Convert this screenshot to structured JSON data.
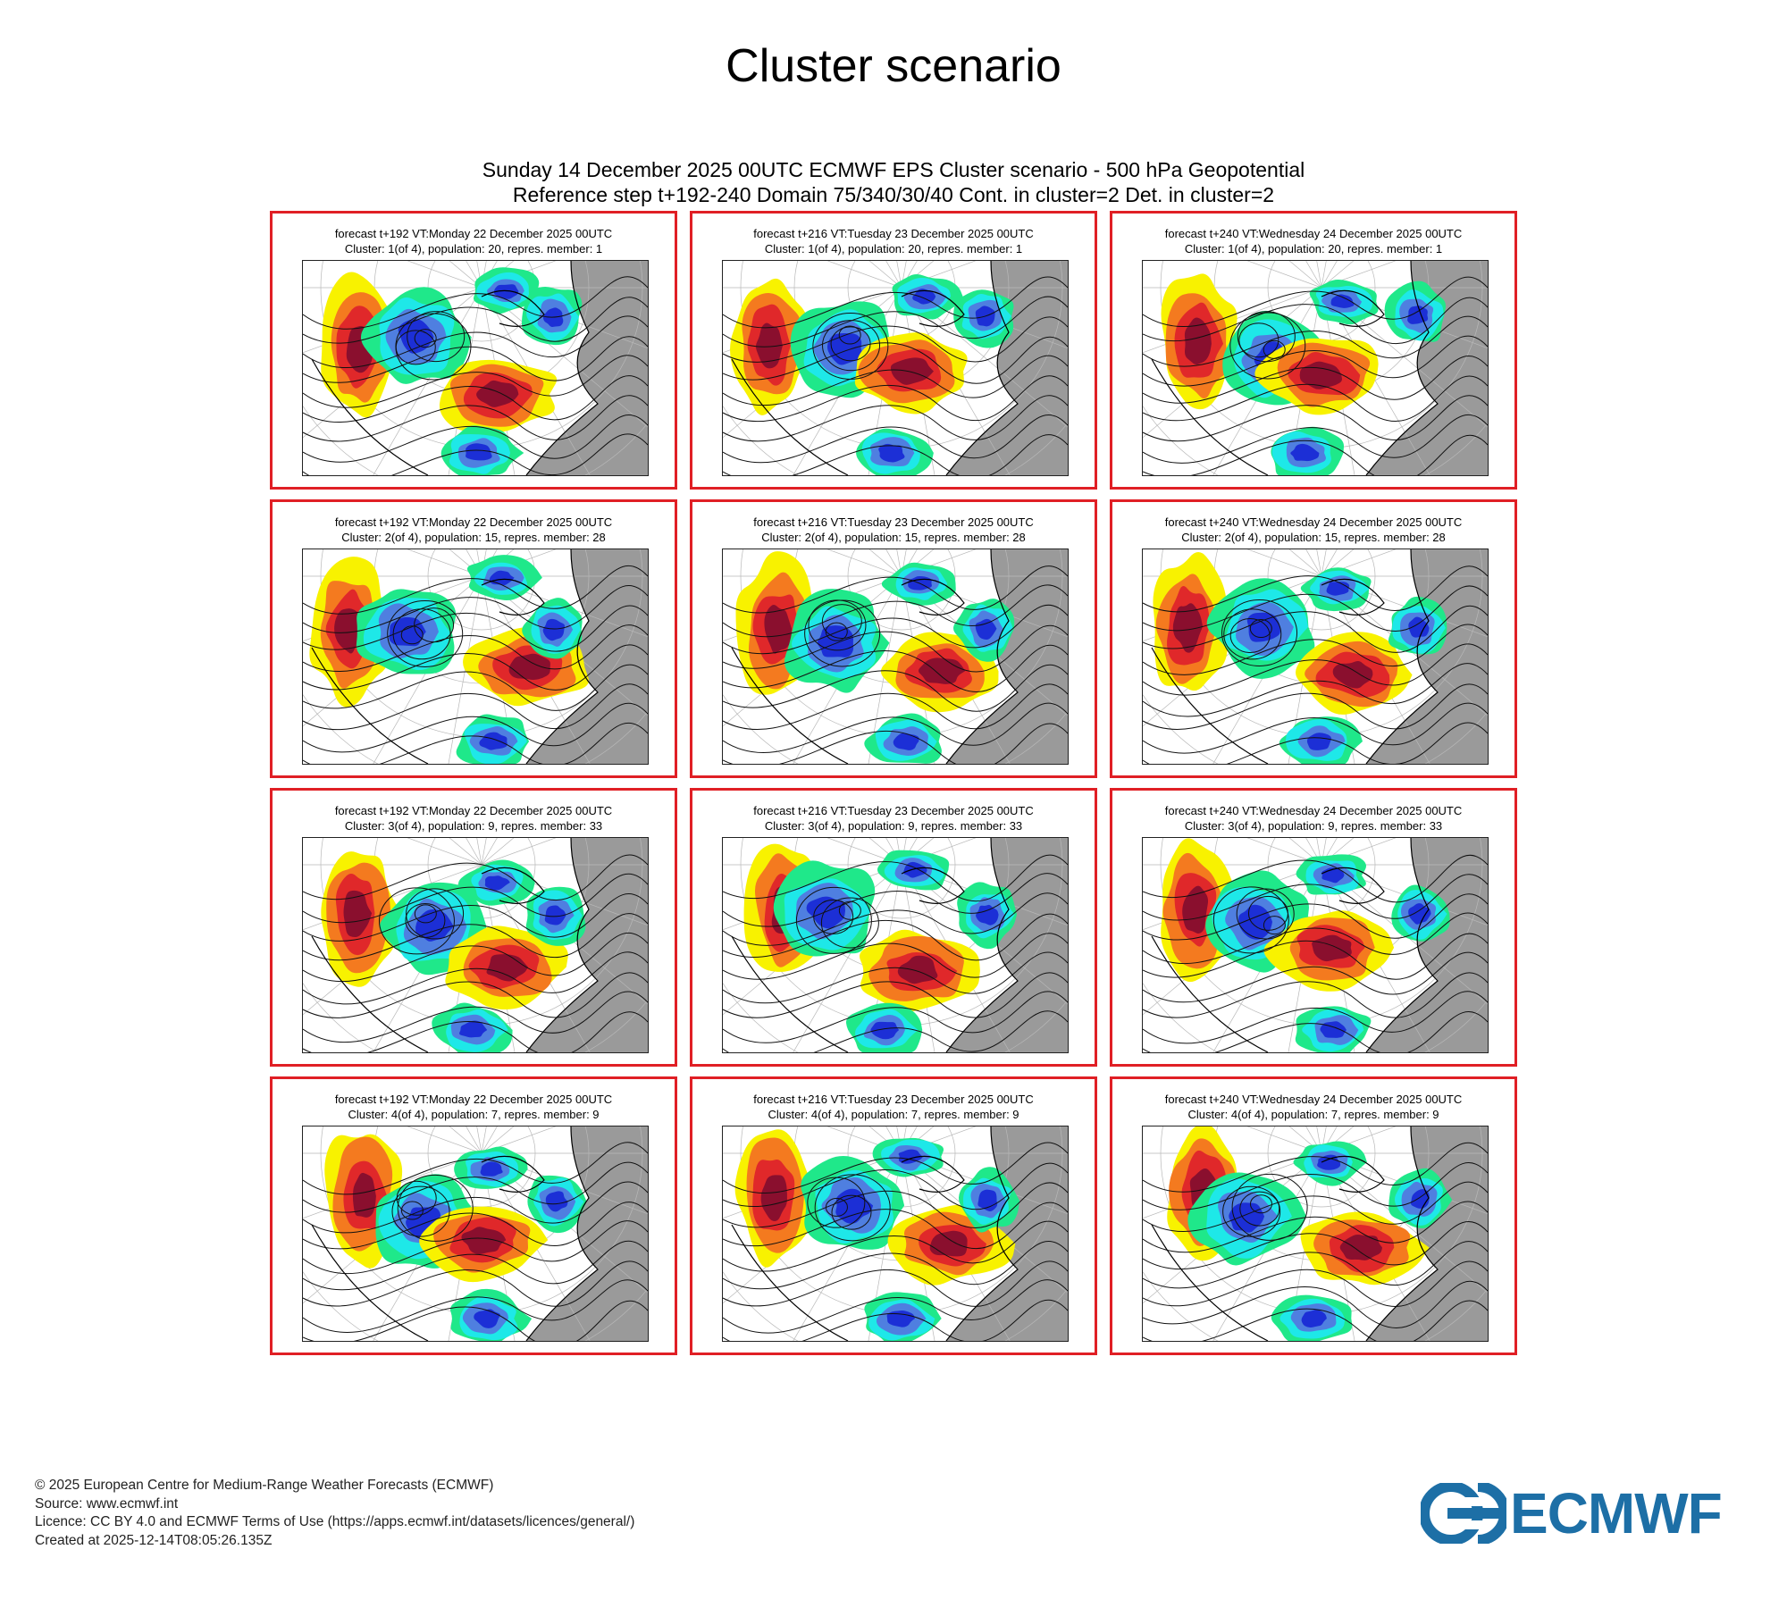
{
  "page": {
    "title": "Cluster scenario"
  },
  "product": {
    "header_line1": "Sunday 14 December 2025 00UTC ECMWF EPS Cluster scenario - 500 hPa Geopotential",
    "header_line2": "Reference step t+192-240 Domain 75/340/30/40 Cont. in cluster=2 Det. in cluster=2"
  },
  "panels": [
    {
      "line1": "forecast t+192 VT:Monday 22 December 2025 00UTC",
      "line2": "Cluster: 1(of 4), population: 20, repres. member: 1"
    },
    {
      "line1": "forecast t+216 VT:Tuesday 23 December 2025 00UTC",
      "line2": "Cluster: 1(of 4), population: 20, repres. member: 1"
    },
    {
      "line1": "forecast t+240 VT:Wednesday 24 December 2025 00UTC",
      "line2": "Cluster: 1(of 4), population: 20, repres. member: 1"
    },
    {
      "line1": "forecast t+192 VT:Monday 22 December 2025 00UTC",
      "line2": "Cluster: 2(of 4), population: 15, repres. member: 28"
    },
    {
      "line1": "forecast t+216 VT:Tuesday 23 December 2025 00UTC",
      "line2": "Cluster: 2(of 4), population: 15, repres. member: 28"
    },
    {
      "line1": "forecast t+240 VT:Wednesday 24 December 2025 00UTC",
      "line2": "Cluster: 2(of 4), population: 15, repres. member: 28"
    },
    {
      "line1": "forecast t+192 VT:Monday 22 December 2025 00UTC",
      "line2": "Cluster: 3(of 4), population: 9, repres. member: 33"
    },
    {
      "line1": "forecast t+216 VT:Tuesday 23 December 2025 00UTC",
      "line2": "Cluster: 3(of 4), population: 9, repres. member: 33"
    },
    {
      "line1": "forecast t+240 VT:Wednesday 24 December 2025 00UTC",
      "line2": "Cluster: 3(of 4), population: 9, repres. member: 33"
    },
    {
      "line1": "forecast t+192 VT:Monday 22 December 2025 00UTC",
      "line2": "Cluster: 4(of 4), population: 7, repres. member: 9"
    },
    {
      "line1": "forecast t+216 VT:Tuesday 23 December 2025 00UTC",
      "line2": "Cluster: 4(of 4), population: 7, repres. member: 9"
    },
    {
      "line1": "forecast t+240 VT:Wednesday 24 December 2025 00UTC",
      "line2": "Cluster: 4(of 4), population: 7, repres. member: 9"
    }
  ],
  "footer": {
    "copyright": "© 2025 European Centre for Medium-Range Weather Forecasts (ECMWF)",
    "source": "Source: www.ecmwf.int",
    "licence": "Licence: CC BY 4.0 and ECMWF Terms of Use (https://apps.ecmwf.int/datasets/licences/general/)",
    "created": "Created at 2025-12-14T08:05:26.135Z"
  },
  "logo": {
    "text": "ECMWF",
    "color": "#1d6fa6"
  },
  "colors": {
    "panel_border": "#e01f25",
    "anomaly_dark_red": "#8a0f2e",
    "anomaly_red": "#e0282a",
    "anomaly_orange": "#f47a1f",
    "anomaly_yellow": "#f8f200",
    "anomaly_green": "#1fe88a",
    "anomaly_cyan": "#1ee8e8",
    "anomaly_blue": "#4f7fe0",
    "anomaly_dark_blue": "#1c2fd6",
    "land_grey": "#9a9a9a"
  }
}
